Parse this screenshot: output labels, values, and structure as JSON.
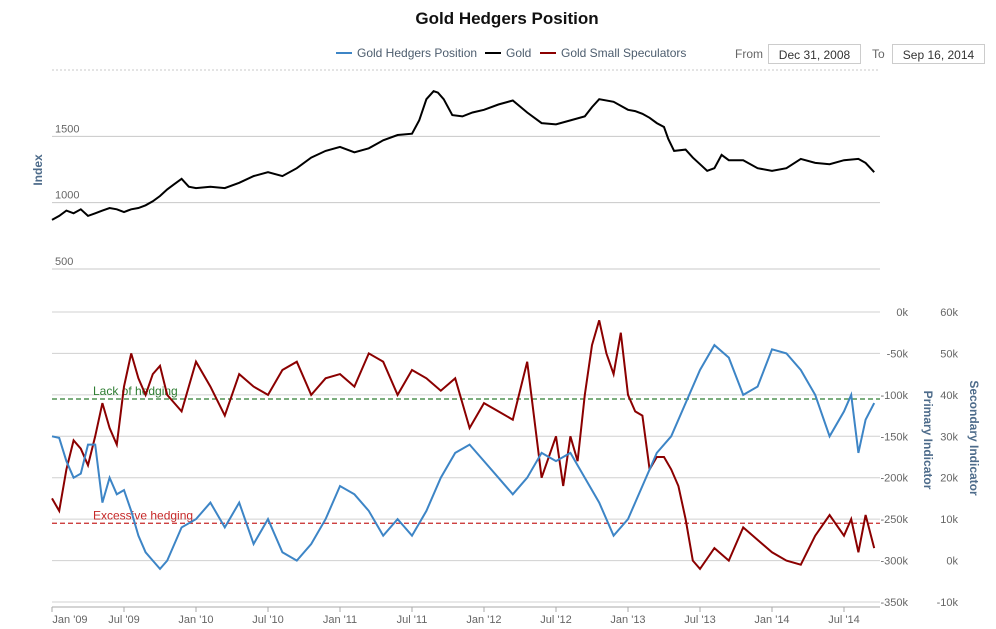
{
  "chart_data": {
    "type": "line",
    "title": "Gold Hedgers Position",
    "range": {
      "from_label": "From",
      "from": "Dec 31, 2008",
      "to_label": "To",
      "to": "Sep 16, 2014"
    },
    "legend": [
      {
        "name": "Gold Hedgers Position",
        "color": "#3d85c6"
      },
      {
        "name": "Gold",
        "color": "#000000"
      },
      {
        "name": "Gold Small Speculators",
        "color": "#8b0000"
      }
    ],
    "x_ticks": [
      "Jan '09",
      "Jul '09",
      "Jan '10",
      "Jul '10",
      "Jan '11",
      "Jul '11",
      "Jan '12",
      "Jul '12",
      "Jan '13",
      "Jul '13",
      "Jan '14",
      "Jul '14"
    ],
    "top_panel": {
      "ylabel": "Index",
      "yticks": [
        "1500",
        "1000",
        "500"
      ],
      "ylim": [
        500,
        2000
      ],
      "gold_x": [
        2009.0,
        2009.05,
        2009.1,
        2009.15,
        2009.2,
        2009.25,
        2009.3,
        2009.35,
        2009.4,
        2009.45,
        2009.5,
        2009.55,
        2009.6,
        2009.65,
        2009.7,
        2009.75,
        2009.8,
        2009.85,
        2009.9,
        2009.95,
        2010.0,
        2010.1,
        2010.2,
        2010.3,
        2010.4,
        2010.5,
        2010.6,
        2010.7,
        2010.8,
        2010.9,
        2011.0,
        2011.1,
        2011.2,
        2011.3,
        2011.4,
        2011.5,
        2011.55,
        2011.6,
        2011.65,
        2011.68,
        2011.72,
        2011.78,
        2011.85,
        2011.92,
        2012.0,
        2012.1,
        2012.2,
        2012.3,
        2012.4,
        2012.5,
        2012.6,
        2012.7,
        2012.75,
        2012.8,
        2012.9,
        2013.0,
        2013.05,
        2013.1,
        2013.15,
        2013.2,
        2013.25,
        2013.28,
        2013.32,
        2013.4,
        2013.45,
        2013.5,
        2013.55,
        2013.6,
        2013.65,
        2013.7,
        2013.8,
        2013.9,
        2014.0,
        2014.1,
        2014.2,
        2014.3,
        2014.4,
        2014.5,
        2014.6,
        2014.65,
        2014.71
      ],
      "gold_y": [
        870,
        900,
        940,
        920,
        950,
        900,
        920,
        940,
        960,
        950,
        930,
        950,
        960,
        980,
        1010,
        1050,
        1100,
        1140,
        1180,
        1120,
        1110,
        1120,
        1110,
        1150,
        1200,
        1230,
        1200,
        1260,
        1340,
        1390,
        1420,
        1380,
        1410,
        1470,
        1510,
        1520,
        1620,
        1780,
        1840,
        1830,
        1780,
        1660,
        1650,
        1680,
        1700,
        1740,
        1770,
        1680,
        1600,
        1590,
        1620,
        1650,
        1720,
        1780,
        1760,
        1700,
        1690,
        1670,
        1640,
        1600,
        1570,
        1480,
        1390,
        1400,
        1340,
        1290,
        1240,
        1260,
        1360,
        1320,
        1320,
        1260,
        1240,
        1260,
        1330,
        1300,
        1290,
        1320,
        1330,
        1300,
        1230
      ]
    },
    "bottom_panel": {
      "primary_label": "Primary Indicator",
      "secondary_label": "Secondary Indicator",
      "primary_ticks": [
        "0k",
        "-50k",
        "-100k",
        "-150k",
        "-200k",
        "-250k",
        "-300k",
        "-350k"
      ],
      "primary_ylim": [
        -350000,
        0
      ],
      "secondary_ticks": [
        "60k",
        "50k",
        "40k",
        "30k",
        "20k",
        "10k",
        "0k",
        "-10k"
      ],
      "secondary_ylim": [
        -10000,
        60000
      ],
      "annotations": [
        {
          "text": "Lack of hedging",
          "value": -105000,
          "color": "#2e7d32"
        },
        {
          "text": "Excessive hedging",
          "value": -255000,
          "color": "#c62828"
        }
      ],
      "hedgers_x": [
        2009.0,
        2009.05,
        2009.1,
        2009.15,
        2009.2,
        2009.25,
        2009.3,
        2009.35,
        2009.4,
        2009.45,
        2009.5,
        2009.55,
        2009.6,
        2009.65,
        2009.7,
        2009.75,
        2009.8,
        2009.9,
        2010.0,
        2010.1,
        2010.2,
        2010.3,
        2010.4,
        2010.5,
        2010.6,
        2010.7,
        2010.8,
        2010.9,
        2011.0,
        2011.1,
        2011.2,
        2011.3,
        2011.4,
        2011.5,
        2011.6,
        2011.7,
        2011.8,
        2011.9,
        2012.0,
        2012.1,
        2012.2,
        2012.3,
        2012.4,
        2012.5,
        2012.6,
        2012.7,
        2012.8,
        2012.9,
        2013.0,
        2013.1,
        2013.2,
        2013.3,
        2013.4,
        2013.5,
        2013.6,
        2013.7,
        2013.8,
        2013.9,
        2014.0,
        2014.1,
        2014.2,
        2014.3,
        2014.4,
        2014.5,
        2014.55,
        2014.6,
        2014.65,
        2014.71
      ],
      "hedgers_y": [
        -150000,
        -152000,
        -180000,
        -200000,
        -195000,
        -160000,
        -160000,
        -230000,
        -200000,
        -220000,
        -215000,
        -240000,
        -270000,
        -290000,
        -300000,
        -310000,
        -300000,
        -260000,
        -250000,
        -230000,
        -260000,
        -230000,
        -280000,
        -250000,
        -290000,
        -300000,
        -280000,
        -250000,
        -210000,
        -220000,
        -240000,
        -270000,
        -250000,
        -270000,
        -240000,
        -200000,
        -170000,
        -160000,
        -180000,
        -200000,
        -220000,
        -200000,
        -170000,
        -180000,
        -170000,
        -200000,
        -230000,
        -270000,
        -250000,
        -210000,
        -170000,
        -150000,
        -110000,
        -70000,
        -40000,
        -55000,
        -100000,
        -90000,
        -45000,
        -50000,
        -70000,
        -100000,
        -150000,
        -120000,
        -100000,
        -170000,
        -130000,
        -110000
      ]
    },
    "speculators": {
      "x": [
        2009.0,
        2009.05,
        2009.1,
        2009.15,
        2009.2,
        2009.25,
        2009.3,
        2009.35,
        2009.4,
        2009.45,
        2009.5,
        2009.55,
        2009.6,
        2009.65,
        2009.7,
        2009.75,
        2009.8,
        2009.9,
        2010.0,
        2010.1,
        2010.2,
        2010.3,
        2010.4,
        2010.5,
        2010.6,
        2010.7,
        2010.8,
        2010.9,
        2011.0,
        2011.1,
        2011.2,
        2011.3,
        2011.4,
        2011.5,
        2011.6,
        2011.7,
        2011.8,
        2011.9,
        2012.0,
        2012.1,
        2012.2,
        2012.3,
        2012.4,
        2012.5,
        2012.55,
        2012.6,
        2012.65,
        2012.7,
        2012.75,
        2012.8,
        2012.85,
        2012.9,
        2012.95,
        2013.0,
        2013.05,
        2013.1,
        2013.15,
        2013.2,
        2013.25,
        2013.3,
        2013.35,
        2013.4,
        2013.45,
        2013.5,
        2013.6,
        2013.7,
        2013.8,
        2013.9,
        2014.0,
        2014.1,
        2014.2,
        2014.3,
        2014.4,
        2014.5,
        2014.55,
        2014.6,
        2014.65,
        2014.71
      ],
      "y": [
        15000,
        12000,
        22000,
        29000,
        27000,
        23000,
        30000,
        38000,
        32000,
        28000,
        42000,
        50000,
        44000,
        40000,
        45000,
        47000,
        40000,
        36000,
        48000,
        42000,
        35000,
        45000,
        42000,
        40000,
        46000,
        48000,
        40000,
        44000,
        45000,
        42000,
        50000,
        48000,
        40000,
        46000,
        44000,
        41000,
        44000,
        32000,
        38000,
        36000,
        34000,
        48000,
        20000,
        30000,
        18000,
        30000,
        24000,
        40000,
        52000,
        58000,
        50000,
        45000,
        55000,
        40000,
        36000,
        35000,
        22000,
        25000,
        25000,
        22000,
        18000,
        10000,
        0,
        -2000,
        3000,
        0,
        8000,
        5000,
        2000,
        0,
        -1000,
        6000,
        11000,
        6000,
        10000,
        2000,
        11000,
        3000
      ]
    }
  }
}
